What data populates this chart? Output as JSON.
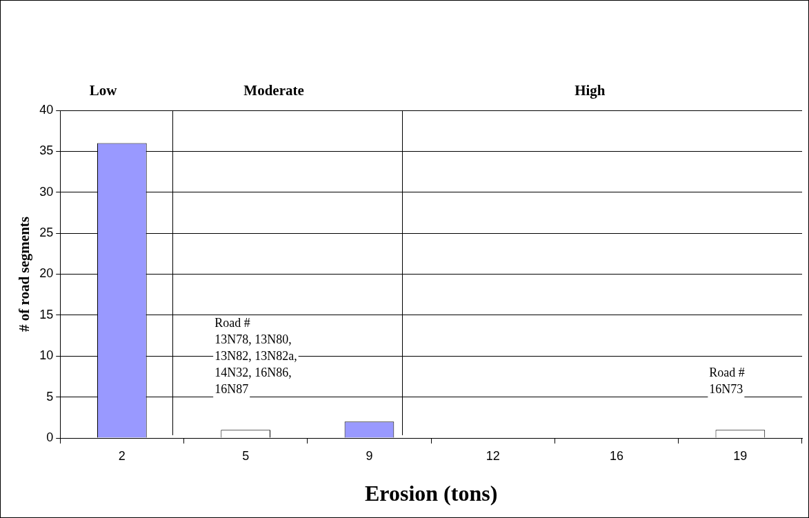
{
  "chart_data": {
    "type": "bar",
    "xlabel": "Erosion (tons)",
    "ylabel": "# of road segments",
    "categories": [
      "2",
      "5",
      "9",
      "12",
      "16",
      "19"
    ],
    "values": [
      36,
      1,
      2,
      0,
      0,
      1
    ],
    "colors": [
      "#9999ff",
      "#ffffff",
      "#9999ff",
      "#ffffff",
      "#ffffff",
      "#ffffff"
    ],
    "ylim": [
      0,
      40
    ],
    "yticks": [
      0,
      5,
      10,
      15,
      20,
      25,
      30,
      35,
      40
    ],
    "grid": "y",
    "annotations": [
      "Low",
      "Moderate",
      "High",
      {
        "text": "Road #\n13N78, 13N80,\n13N82, 13N82a,\n14N32, 16N86,\n16N87",
        "x": "5",
        "y": 1
      },
      {
        "text": "Road #\n16N73",
        "x": "19",
        "y": 1
      }
    ]
  }
}
